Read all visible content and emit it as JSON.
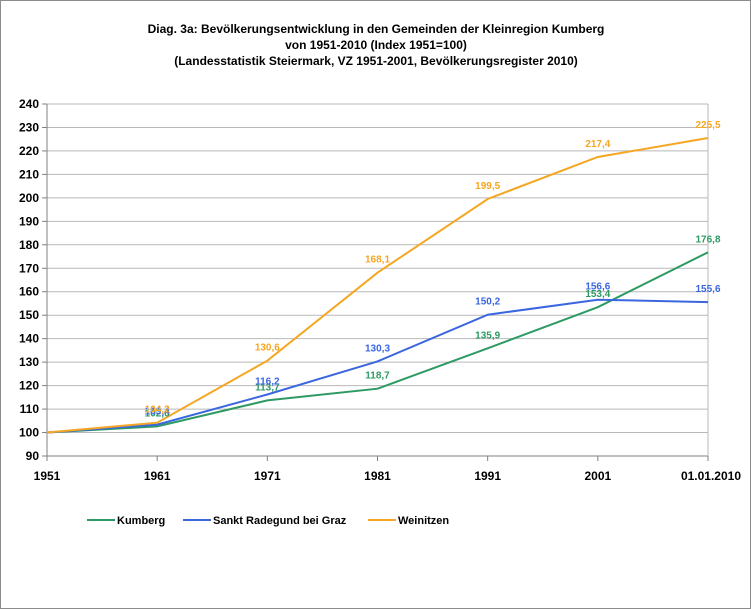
{
  "chart_data": {
    "type": "line",
    "title": [
      "Diag. 3a: Bevölkerungsentwicklung  in den Gemeinden  der Kleinregion  Kumberg",
      "von 1951-2010  (Index 1951=100)",
      "(Landesstatistik  Steiermark,  VZ 1951-2001,  Bevölkerungsregister  2010)"
    ],
    "categories": [
      "1951",
      "1961",
      "1971",
      "1981",
      "1991",
      "2001",
      "01.01.2010"
    ],
    "ylim": [
      90,
      240
    ],
    "yticks": [
      "90",
      "100",
      "110",
      "120",
      "130",
      "140",
      "150",
      "160",
      "170",
      "180",
      "190",
      "200",
      "210",
      "220",
      "230",
      "240"
    ],
    "grid": "horizontal",
    "legend_position": "bottom",
    "series": [
      {
        "name": "Kumberg",
        "color": "#2e9a63",
        "values": [
          100,
          102.6,
          113.7,
          118.7,
          135.9,
          153.4,
          176.8
        ],
        "labels": [
          "",
          "102,6",
          "113,7",
          "118,7",
          "135,9",
          "153,4",
          "176,8"
        ]
      },
      {
        "name": "Sankt Radegund bei Graz",
        "color": "#3a66e0",
        "values": [
          100,
          103.4,
          116.2,
          130.3,
          150.2,
          156.6,
          155.6
        ],
        "labels": [
          "",
          "103,4",
          "116,2",
          "130,3",
          "150,2",
          "156,6",
          "155,6"
        ]
      },
      {
        "name": "Weinitzen",
        "color": "#f5a623",
        "values": [
          100,
          104.2,
          130.6,
          168.1,
          199.5,
          217.4,
          225.5
        ],
        "labels": [
          "",
          "104,2",
          "130,6",
          "168,1",
          "199,5",
          "217,4",
          "225,5"
        ]
      }
    ]
  }
}
